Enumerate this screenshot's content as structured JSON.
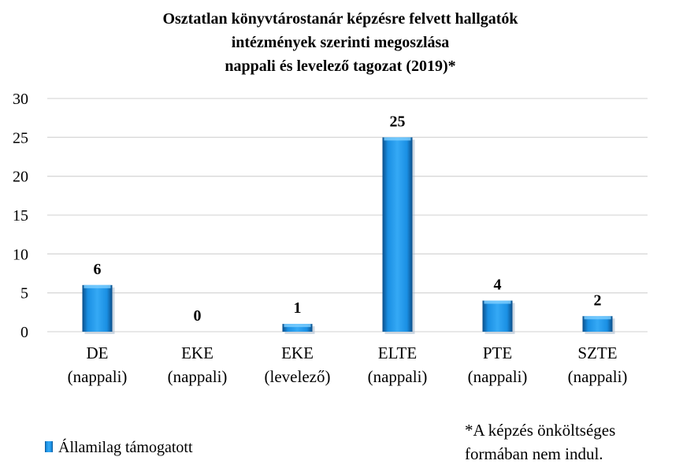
{
  "chart_data": {
    "type": "bar",
    "title_lines": [
      "Osztatlan könyvtárostanár képzésre felvett hallgatók",
      "intézmények szerinti megoszlása",
      "nappali és levelező tagozat (2019)*"
    ],
    "categories": [
      [
        "DE",
        "(nappali)"
      ],
      [
        "EKE",
        "(nappali)"
      ],
      [
        "EKE",
        "(levelező)"
      ],
      [
        "ELTE",
        "(nappali)"
      ],
      [
        "PTE",
        "(nappali)"
      ],
      [
        "SZTE",
        "(nappali)"
      ]
    ],
    "series": [
      {
        "name": "Államilag támogatott",
        "values": [
          6,
          0,
          1,
          25,
          4,
          2
        ]
      }
    ],
    "ylim": [
      0,
      30
    ],
    "yticks": [
      0,
      5,
      10,
      15,
      20,
      25,
      30
    ],
    "grid": true,
    "legend_position": "bottom-left",
    "bar_color": "#1a8fe3",
    "bar_dark": "#0b4f8a",
    "bar_light": "#7fd0ff",
    "grid_color": "#d9d9d9"
  },
  "footnote": [
    "*A képzés önköltséges",
    "formában nem indul."
  ]
}
